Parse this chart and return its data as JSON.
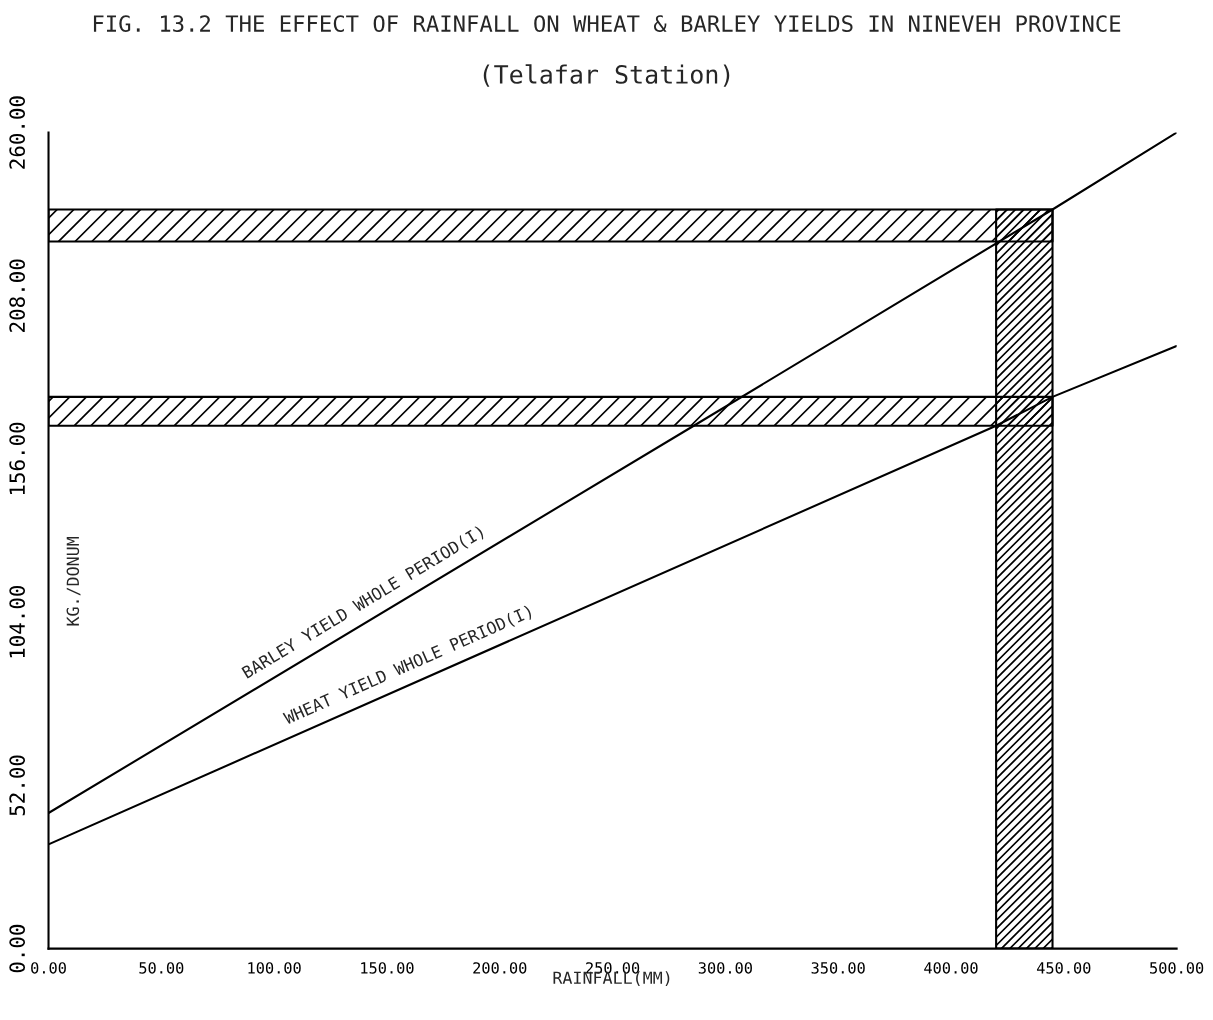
{
  "chart_data": {
    "type": "line",
    "title": "FIG. 13.2 THE EFFECT OF RAINFALL ON WHEAT & BARLEY YIELDS IN NINEVEH PROVINCE",
    "subtitle": "(Telafar Station)",
    "xlabel": "RAINFALL(MM)",
    "ylabel": "KG./DONUM",
    "series": [
      {
        "color": "#000000",
        "x": [
          0,
          286,
          445,
          500
        ],
        "values": [
          43.2,
          166.6,
          235.5,
          260
        ]
      },
      {
        "color": "#000000",
        "x": [
          0,
          420,
          445,
          500
        ],
        "values": [
          33.2,
          166.6,
          175.8,
          192
        ]
      }
    ],
    "annotations": [
      {
        "text": "BARLEY YIELD WHOLE PERIOD(I)",
        "x": 140,
        "y": 104
      },
      {
        "text": "WHEAT YIELD WHOLE PERIOD(I)",
        "x": 160,
        "y": 84
      }
    ],
    "bands": [
      {
        "axis": "y",
        "from": 225.3,
        "to": 235.5,
        "color": "#000000"
      },
      {
        "axis": "y",
        "from": 166.6,
        "to": 175.8,
        "color": "#000000"
      },
      {
        "axis": "x",
        "from": 420,
        "to": 445,
        "color": "#000000"
      }
    ],
    "xlim": [
      0,
      500
    ],
    "ylim": [
      0,
      260
    ],
    "xticks": [
      {
        "value": 0,
        "label": "0.00"
      },
      {
        "value": 50,
        "label": "50.00"
      },
      {
        "value": 100,
        "label": "100.00"
      },
      {
        "value": 150,
        "label": "150.00"
      },
      {
        "value": 200,
        "label": "200.00"
      },
      {
        "value": 250,
        "label": "250.00"
      },
      {
        "value": 300,
        "label": "300.00"
      },
      {
        "value": 350,
        "label": "350.00"
      },
      {
        "value": 400,
        "label": "400.00"
      },
      {
        "value": 450,
        "label": "450.00"
      },
      {
        "value": 500,
        "label": "500.00"
      }
    ],
    "yticks": [
      {
        "value": 0,
        "label": "0.00"
      },
      {
        "value": 52,
        "label": "52.00"
      },
      {
        "value": 104,
        "label": "104.00"
      },
      {
        "value": 156,
        "label": "156.00"
      },
      {
        "value": 208,
        "label": "208.00"
      },
      {
        "value": 260,
        "label": "260.00"
      }
    ],
    "grid": false,
    "legend": false,
    "marker": "none",
    "line_style": "solid"
  }
}
